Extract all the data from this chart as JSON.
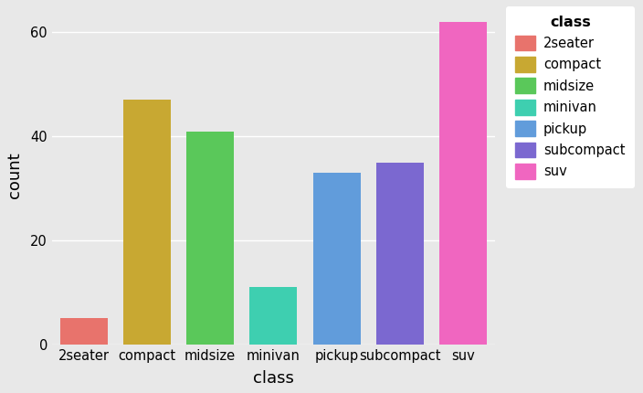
{
  "categories": [
    "2seater",
    "compact",
    "midsize",
    "minivan",
    "pickup",
    "subcompact",
    "suv"
  ],
  "values": [
    5,
    47,
    41,
    11,
    33,
    35,
    62
  ],
  "bar_colors": [
    "#E8736C",
    "#C8A832",
    "#5AC85A",
    "#3ECFB0",
    "#619CDB",
    "#7B68D0",
    "#F066C0"
  ],
  "legend_colors": [
    "#E8736C",
    "#C8A832",
    "#5AC85A",
    "#3ECFB0",
    "#619CDB",
    "#7B68D0",
    "#F066C0"
  ],
  "legend_labels": [
    "2seater",
    "compact",
    "midsize",
    "minivan",
    "pickup",
    "subcompact",
    "suv"
  ],
  "legend_title": "class",
  "xlabel": "class",
  "ylabel": "count",
  "ylim": [
    0,
    65
  ],
  "yticks": [
    0,
    20,
    40,
    60
  ],
  "background_color": "#E8E8E8",
  "legend_background": "#FFFFFF",
  "grid_color": "#FFFFFF",
  "bar_width": 0.75
}
